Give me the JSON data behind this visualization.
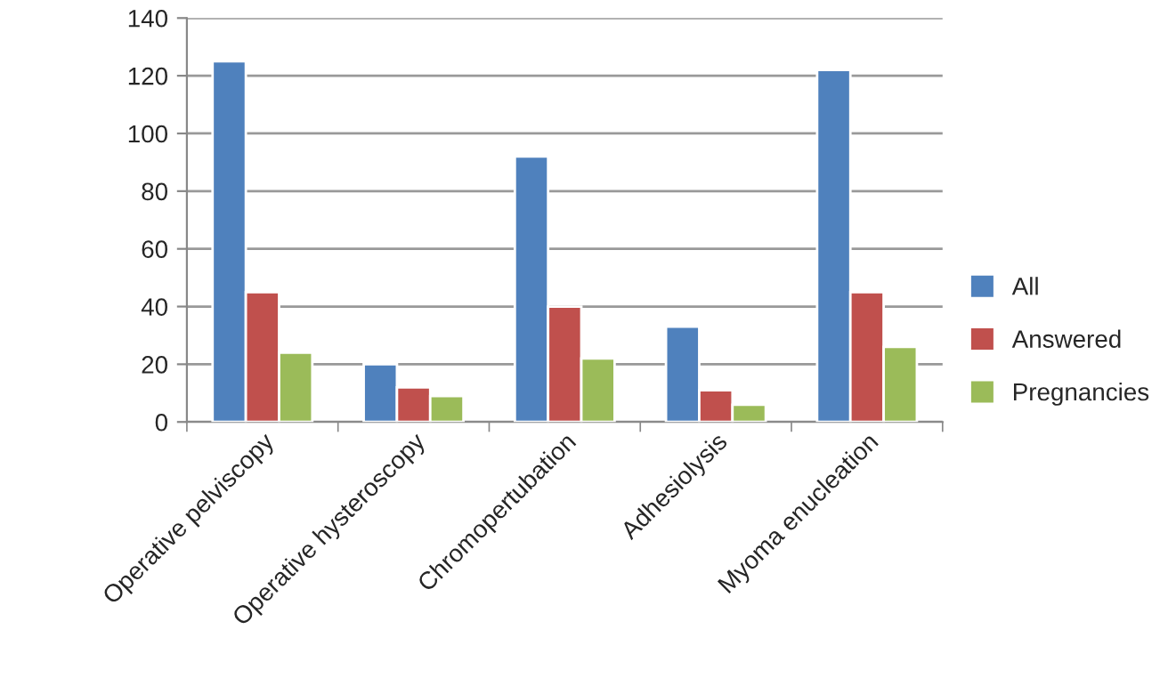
{
  "chart_data": {
    "type": "bar",
    "categories": [
      "Operative pelviscopy",
      "Operative hysteroscopy",
      "Chromopertubation",
      "Adhesiolysis",
      "Myoma enucleation"
    ],
    "series": [
      {
        "name": "All",
        "color": "#4f81bd",
        "values": [
          125,
          20,
          92,
          33,
          122
        ]
      },
      {
        "name": "Answered",
        "color": "#c0504d",
        "values": [
          45,
          12,
          40,
          11,
          45
        ]
      },
      {
        "name": "Pregnancies",
        "color": "#9bbb59",
        "values": [
          24,
          9,
          22,
          6,
          26
        ]
      }
    ],
    "ylim": [
      0,
      140
    ],
    "yticks": [
      0,
      20,
      40,
      60,
      80,
      100,
      120,
      140
    ],
    "grid": "y",
    "legend": "right"
  }
}
